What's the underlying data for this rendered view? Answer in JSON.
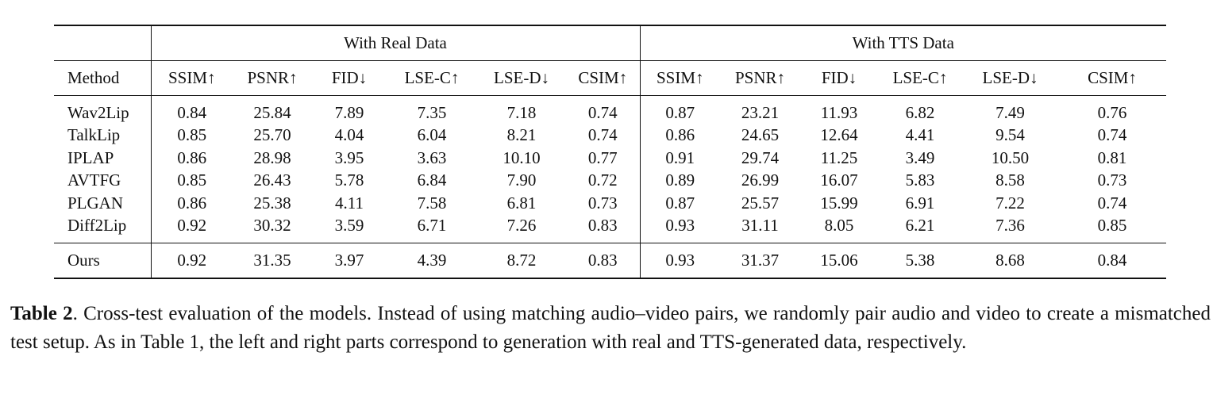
{
  "table": {
    "method_header": "Method",
    "groups": [
      "With Real Data",
      "With TTS Data"
    ],
    "metrics": [
      "SSIM↑",
      "PSNR↑",
      "FID↓",
      "LSE-C↑",
      "LSE-D↓",
      "CSIM↑"
    ],
    "rows": [
      {
        "method": "Wav2Lip",
        "values": [
          "0.84",
          "25.84",
          "7.89",
          "7.35",
          "7.18",
          "0.74",
          "0.87",
          "23.21",
          "11.93",
          "6.82",
          "7.49",
          "0.76"
        ]
      },
      {
        "method": "TalkLip",
        "values": [
          "0.85",
          "25.70",
          "4.04",
          "6.04",
          "8.21",
          "0.74",
          "0.86",
          "24.65",
          "12.64",
          "4.41",
          "9.54",
          "0.74"
        ]
      },
      {
        "method": "IPLAP",
        "values": [
          "0.86",
          "28.98",
          "3.95",
          "3.63",
          "10.10",
          "0.77",
          "0.91",
          "29.74",
          "11.25",
          "3.49",
          "10.50",
          "0.81"
        ]
      },
      {
        "method": "AVTFG",
        "values": [
          "0.85",
          "26.43",
          "5.78",
          "6.84",
          "7.90",
          "0.72",
          "0.89",
          "26.99",
          "16.07",
          "5.83",
          "8.58",
          "0.73"
        ]
      },
      {
        "method": "PLGAN",
        "values": [
          "0.86",
          "25.38",
          "4.11",
          "7.58",
          "6.81",
          "0.73",
          "0.87",
          "25.57",
          "15.99",
          "6.91",
          "7.22",
          "0.74"
        ]
      },
      {
        "method": "Diff2Lip",
        "values": [
          "0.92",
          "30.32",
          "3.59",
          "6.71",
          "7.26",
          "0.83",
          "0.93",
          "31.11",
          "8.05",
          "6.21",
          "7.36",
          "0.85"
        ]
      }
    ],
    "ours": {
      "method": "Ours",
      "values": [
        "0.92",
        "31.35",
        "3.97",
        "4.39",
        "8.72",
        "0.83",
        "0.93",
        "31.37",
        "15.06",
        "5.38",
        "8.68",
        "0.84"
      ]
    }
  },
  "caption": {
    "label": "Table 2",
    "text": ". Cross-test evaluation of the models. Instead of using matching audio–video pairs, we randomly pair audio and video to create a mismatched test setup. As in Table 1, the left and right parts correspond to generation with real and TTS-generated data, respectively."
  }
}
